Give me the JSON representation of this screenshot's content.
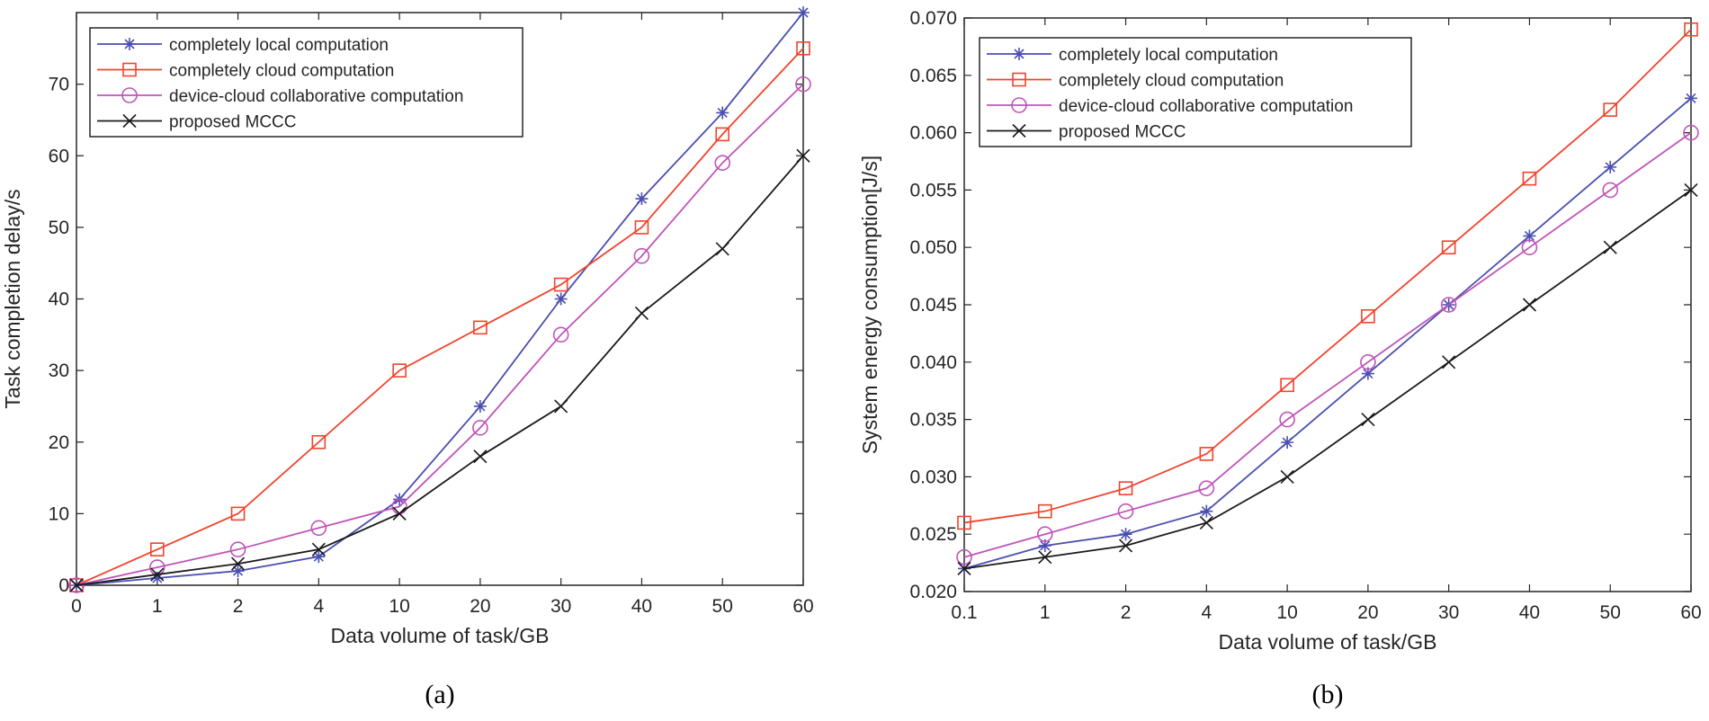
{
  "chart_data": [
    {
      "type": "line",
      "caption": "(a)",
      "xlabel": "Data volume of task/GB",
      "ylabel": "Task completion delay/s",
      "categories": [
        "0",
        "1",
        "2",
        "4",
        "10",
        "20",
        "30",
        "40",
        "50",
        "60"
      ],
      "ylim": [
        0,
        80
      ],
      "yticks": [
        0,
        10,
        20,
        30,
        40,
        50,
        60,
        70
      ],
      "ytick_labels": [
        "0",
        "10",
        "20",
        "30",
        "40",
        "50",
        "60",
        "70"
      ],
      "grid": false,
      "legend_position": "top-left",
      "series": [
        {
          "name": "completely local computation",
          "color": "#4a4fb0",
          "marker": "asterisk",
          "values": [
            0,
            1,
            2,
            4,
            12,
            25,
            40,
            54,
            66,
            80
          ]
        },
        {
          "name": "completely cloud computation",
          "color": "#f0442c",
          "marker": "square",
          "values": [
            0,
            5,
            10,
            20,
            30,
            36,
            42,
            50,
            63,
            75
          ]
        },
        {
          "name": "device-cloud collaborative computation",
          "color": "#c054b8",
          "marker": "circle",
          "values": [
            0,
            2.5,
            5,
            8,
            11,
            22,
            35,
            46,
            59,
            70
          ]
        },
        {
          "name": "proposed MCCC",
          "color": "#1a1a1a",
          "marker": "x",
          "values": [
            0,
            1.5,
            3,
            5,
            10,
            18,
            25,
            38,
            47,
            60
          ]
        }
      ]
    },
    {
      "type": "line",
      "caption": "(b)",
      "xlabel": "Data volume of task/GB",
      "ylabel": "System energy consumption[J/s]",
      "categories": [
        "0.1",
        "1",
        "2",
        "4",
        "10",
        "20",
        "30",
        "40",
        "50",
        "60"
      ],
      "ylim": [
        0.02,
        0.07
      ],
      "yticks": [
        0.02,
        0.025,
        0.03,
        0.035,
        0.04,
        0.045,
        0.05,
        0.055,
        0.06,
        0.065,
        0.07
      ],
      "ytick_labels": [
        "0.020",
        "0.025",
        "0.030",
        "0.035",
        "0.040",
        "0.045",
        "0.050",
        "0.055",
        "0.060",
        "0.065",
        "0.070"
      ],
      "grid": false,
      "legend_position": "top-left",
      "series": [
        {
          "name": "completely local computation",
          "color": "#4a4fb0",
          "marker": "asterisk",
          "values": [
            0.022,
            0.024,
            0.025,
            0.027,
            0.033,
            0.039,
            0.045,
            0.051,
            0.057,
            0.063
          ]
        },
        {
          "name": "completely cloud computation",
          "color": "#f0442c",
          "marker": "square",
          "values": [
            0.026,
            0.027,
            0.029,
            0.032,
            0.038,
            0.044,
            0.05,
            0.056,
            0.062,
            0.069
          ]
        },
        {
          "name": "device-cloud collaborative computation",
          "color": "#c054b8",
          "marker": "circle",
          "values": [
            0.023,
            0.025,
            0.027,
            0.029,
            0.035,
            0.04,
            0.045,
            0.05,
            0.055,
            0.06
          ]
        },
        {
          "name": "proposed MCCC",
          "color": "#1a1a1a",
          "marker": "x",
          "values": [
            0.022,
            0.023,
            0.024,
            0.026,
            0.03,
            0.035,
            0.04,
            0.045,
            0.05,
            0.055
          ]
        }
      ]
    }
  ]
}
